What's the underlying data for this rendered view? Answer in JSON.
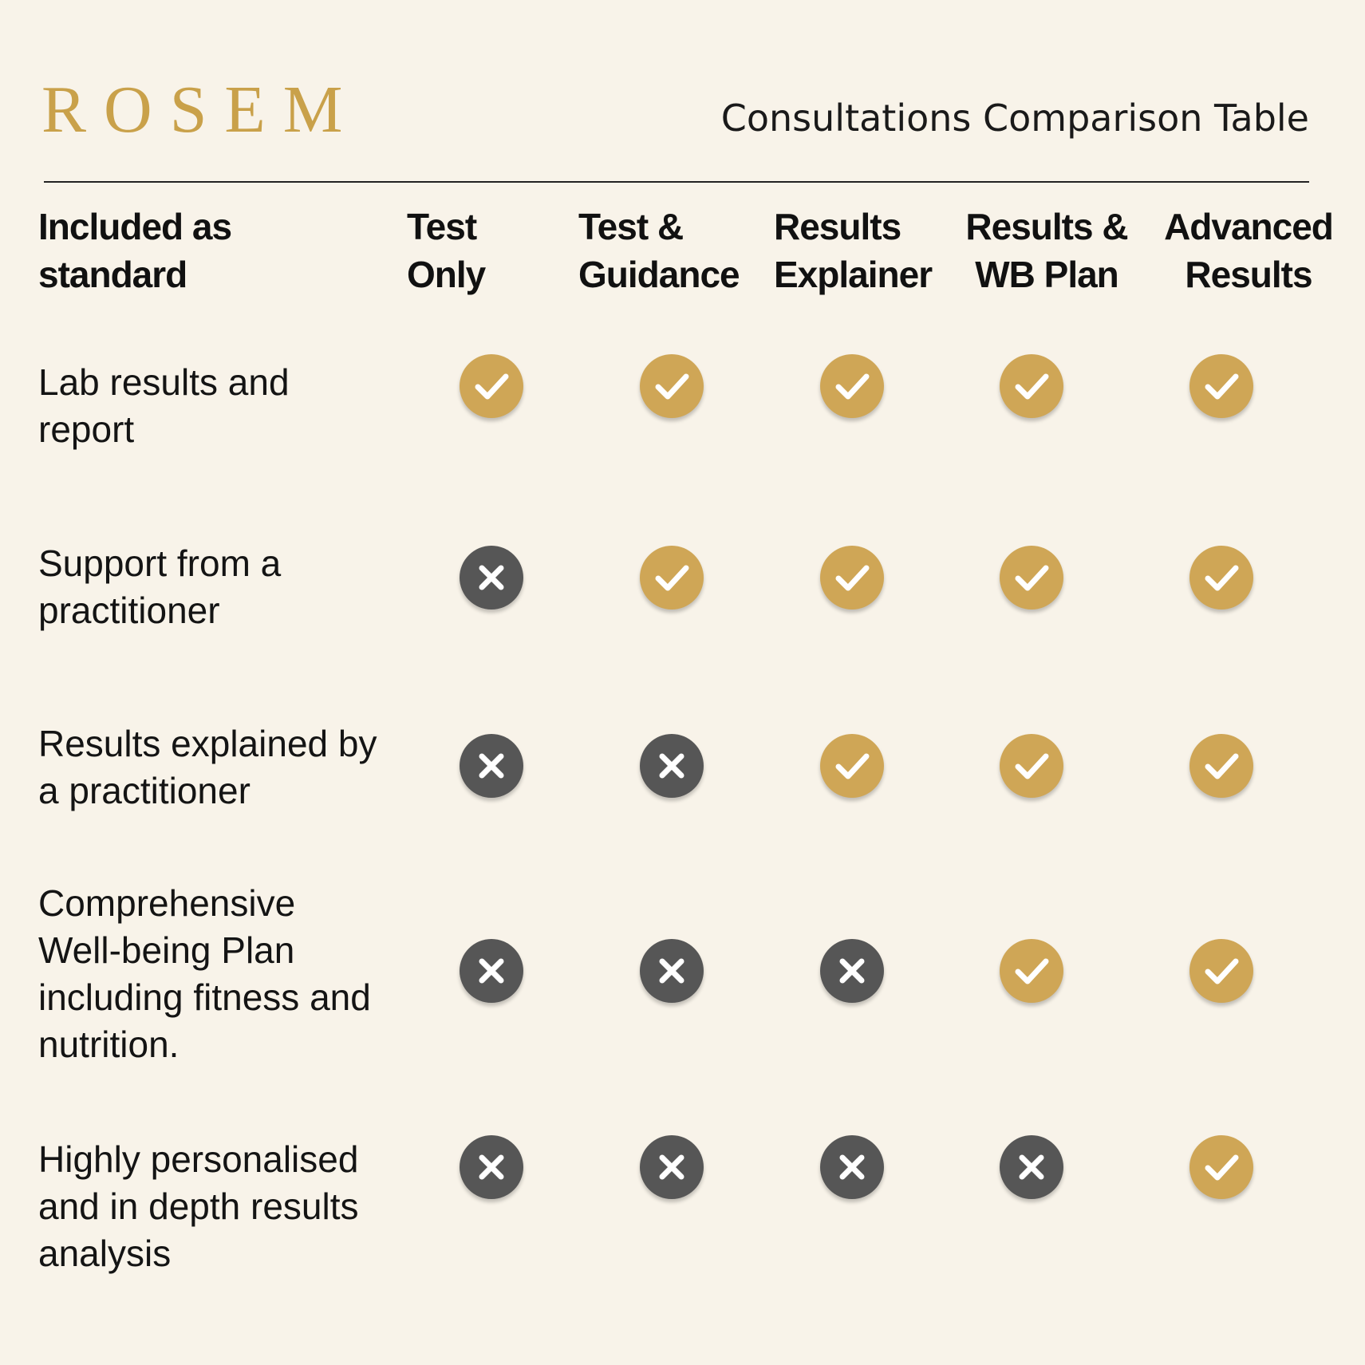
{
  "brand": {
    "logo_text": "ROSEM",
    "accent_color": "#c9a14a"
  },
  "title": "Consultations Comparison Table",
  "table": {
    "corner_header": "Included as\nstandard",
    "columns": [
      "Test\nOnly",
      "Test &\nGuidance",
      "Results\nExplainer",
      "Results &\nWB Plan",
      "Advanced\nResults"
    ],
    "rows": [
      {
        "label": "Lab results and\nreport",
        "included": [
          true,
          true,
          true,
          true,
          true
        ]
      },
      {
        "label": "Support from a\npractitioner",
        "included": [
          false,
          true,
          true,
          true,
          true
        ]
      },
      {
        "label": "Results explained by\na practitioner",
        "included": [
          false,
          false,
          true,
          true,
          true
        ]
      },
      {
        "label": "Comprehensive\nWell-being Plan\nincluding fitness and\nnutrition.",
        "included": [
          false,
          false,
          false,
          true,
          true
        ]
      },
      {
        "label": "Highly personalised\nand in depth results\nanalysis",
        "included": [
          false,
          false,
          false,
          false,
          true
        ]
      }
    ]
  },
  "icons": {
    "included": "check-icon",
    "not_included": "cross-icon"
  },
  "colors": {
    "check": "#cfa656",
    "cross": "#565656",
    "background": "#f8f3e9"
  }
}
